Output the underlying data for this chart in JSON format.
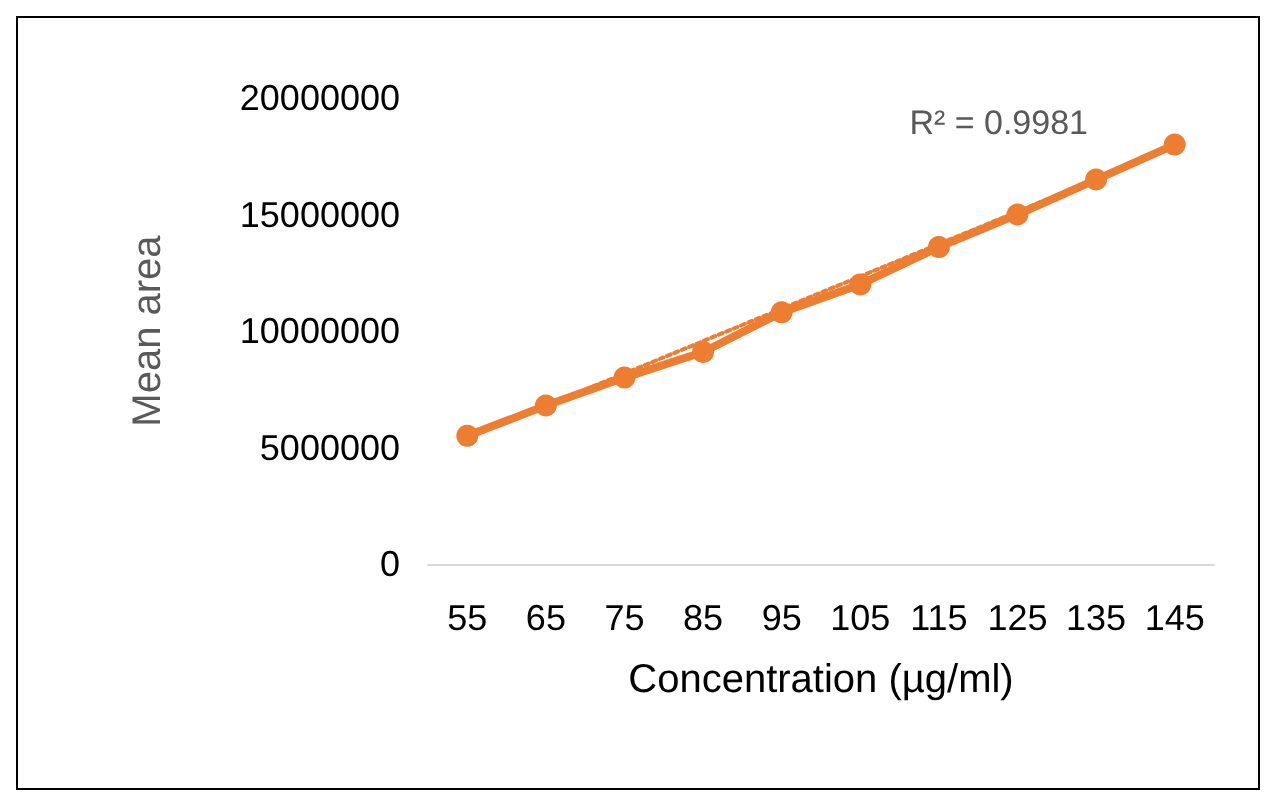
{
  "chart_data": {
    "type": "line",
    "xlabel": "Concentration (µg/ml)",
    "ylabel": "Mean area",
    "categories": [
      "55",
      "65",
      "75",
      "85",
      "95",
      "105",
      "115",
      "125",
      "135",
      "145"
    ],
    "series": [
      {
        "color": "#ed7d31",
        "values": [
          5500000,
          6800000,
          8000000,
          9100000,
          10800000,
          12000000,
          13600000,
          15000000,
          16500000,
          18000000
        ]
      },
      {
        "type": "line",
        "color": "#ed7d31",
        "x": [
          "55",
          "145"
        ],
        "values": [
          5400000,
          17900000
        ],
        "line_style": "dotted",
        "marker": "none"
      }
    ],
    "ylim": [
      0,
      20000000
    ],
    "yticks": [
      0,
      5000000,
      10000000,
      15000000,
      20000000
    ],
    "grid": false,
    "marker": "circle",
    "line_style": "solid",
    "annotations": [
      "R² = 0.9981"
    ]
  }
}
